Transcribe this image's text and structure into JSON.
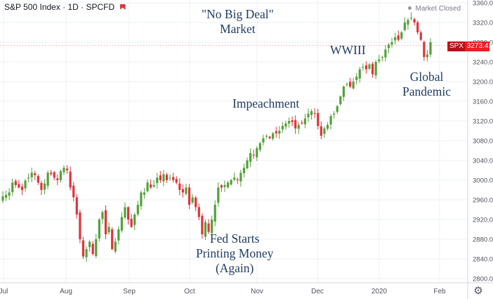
{
  "header": {
    "title": "S&P 500 Index · 1D · SPCFD",
    "market_status": "Market Closed"
  },
  "price_tag": {
    "symbol": "SPX",
    "value": "3273.41"
  },
  "annotations": [
    {
      "lines": [
        "\"No Big Deal\"",
        "Market"
      ]
    },
    {
      "lines": [
        "WWIII"
      ]
    },
    {
      "lines": [
        "Impeachment"
      ]
    },
    {
      "lines": [
        "Global",
        "Pandemic"
      ]
    },
    {
      "lines": [
        "Fed Starts",
        "Printing Money",
        "(Again)"
      ]
    }
  ],
  "colors": {
    "up": "#53a13a",
    "down": "#e0333a",
    "annotation": "#1f3a5f",
    "price_tag": "#ee1c24"
  },
  "icons": {
    "settings": "gear-icon"
  },
  "chart_data": {
    "type": "candlestick",
    "x_tick_labels": [
      "Jul",
      "Aug",
      "Sep",
      "Oct",
      "Nov",
      "Dec",
      "2020",
      "Feb"
    ],
    "y_ticks": [
      2800,
      2840,
      2880,
      2920,
      2960,
      3000,
      3040,
      3080,
      3120,
      3160,
      3200,
      3240,
      3280,
      3320,
      3360
    ],
    "ylim": [
      2790,
      3365
    ],
    "grid": true,
    "last_price": 3273.41,
    "close_approx": [
      2967,
      2970,
      2975,
      2995,
      2990,
      2985,
      2980,
      2999,
      3005,
      3015,
      3010,
      2995,
      2980,
      2993,
      3015,
      3012,
      3005,
      3000,
      3018,
      3025,
      3020,
      2985,
      2965,
      2930,
      2880,
      2845,
      2860,
      2875,
      2850,
      2880,
      2920,
      2935,
      2890,
      2905,
      2860,
      2875,
      2900,
      2925,
      2945,
      2920,
      2905,
      2930,
      2950,
      2975,
      2975,
      2995,
      2985,
      2990,
      3005,
      3000,
      3012,
      3000,
      3005,
      3000,
      2995,
      2980,
      2975,
      2985,
      2950,
      2965,
      2945,
      2925,
      2890,
      2915,
      2895,
      2920,
      2950,
      2985,
      2985,
      2990,
      2995,
      3000,
      3005,
      3000,
      3015,
      3025,
      3040,
      3055,
      3050,
      3065,
      3075,
      3085,
      3090,
      3085,
      3095,
      3095,
      3100,
      3110,
      3115,
      3120,
      3118,
      3105,
      3112,
      3115,
      3125,
      3135,
      3140,
      3135,
      3110,
      3090,
      3105,
      3112,
      3130,
      3135,
      3150,
      3170,
      3190,
      3195,
      3190,
      3200,
      3210,
      3225,
      3230,
      3225,
      3235,
      3215,
      3240,
      3245,
      3250,
      3265,
      3275,
      3280,
      3290,
      3285,
      3300,
      3320,
      3325,
      3330,
      3320,
      3300,
      3285,
      3250,
      3255,
      3280
    ]
  }
}
